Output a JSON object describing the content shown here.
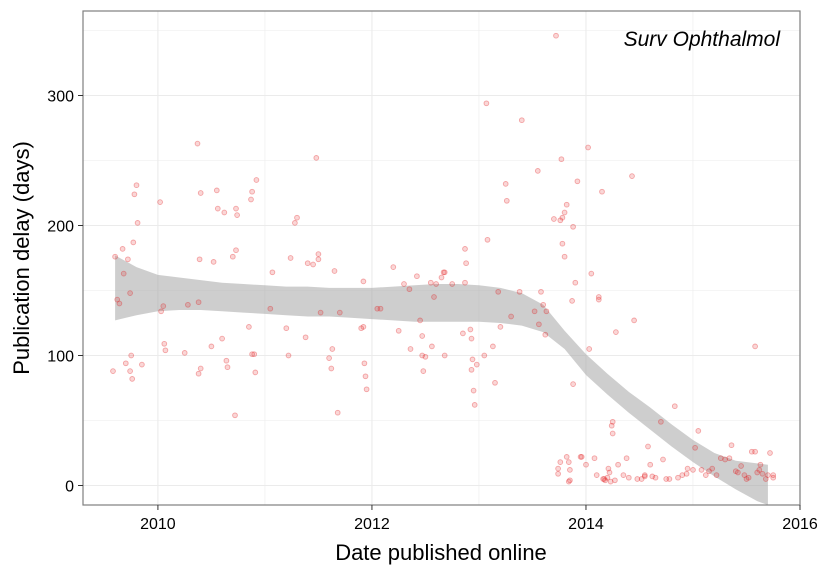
{
  "chart_data": {
    "type": "scatter",
    "annotation": "Surv Ophthalmol",
    "xlabel": "Date published online",
    "ylabel": "Publication delay (days)",
    "xlim": [
      2009.3,
      2016.0
    ],
    "ylim": [
      -15,
      365
    ],
    "x_ticks": [
      2010,
      2012,
      2014,
      2016
    ],
    "y_ticks": [
      0,
      100,
      200,
      300
    ],
    "grid": true,
    "colors": {
      "points": "#e31a1c",
      "band": "#a6a6a6",
      "grid": "#ebebeb",
      "border": "#7f7f7f"
    },
    "smooth_band": {
      "x": [
        2009.6,
        2009.8,
        2010.0,
        2010.2,
        2010.4,
        2010.6,
        2010.8,
        2011.0,
        2011.2,
        2011.4,
        2011.6,
        2011.8,
        2012.0,
        2012.2,
        2012.4,
        2012.6,
        2012.8,
        2013.0,
        2013.2,
        2013.4,
        2013.6,
        2013.8,
        2014.0,
        2014.2,
        2014.4,
        2014.6,
        2014.8,
        2015.0,
        2015.2,
        2015.4,
        2015.6,
        2015.7
      ],
      "lower": [
        127,
        131,
        134,
        135,
        135,
        134,
        133,
        132,
        131,
        130,
        130,
        129,
        128,
        127,
        126,
        126,
        126,
        126,
        125,
        123,
        118,
        105,
        85,
        70,
        56,
        43,
        30,
        18,
        7,
        -3,
        -12,
        -15
      ],
      "upper": [
        177,
        168,
        162,
        160,
        158,
        156,
        155,
        154,
        153,
        153,
        152,
        152,
        152,
        153,
        154,
        155,
        155,
        154,
        152,
        148,
        139,
        119,
        101,
        86,
        72,
        60,
        47,
        35,
        25,
        19,
        17,
        16
      ]
    },
    "series": [
      {
        "points": [
          [
            2009.58,
            88
          ],
          [
            2009.6,
            176
          ],
          [
            2009.62,
            143
          ],
          [
            2009.64,
            140
          ],
          [
            2009.67,
            182
          ],
          [
            2009.68,
            163
          ],
          [
            2009.7,
            94
          ],
          [
            2009.72,
            174
          ],
          [
            2009.74,
            88
          ],
          [
            2009.74,
            148
          ],
          [
            2009.75,
            100
          ],
          [
            2009.76,
            82
          ],
          [
            2009.77,
            187
          ],
          [
            2009.78,
            224
          ],
          [
            2009.8,
            231
          ],
          [
            2009.81,
            202
          ],
          [
            2009.85,
            93
          ],
          [
            2010.02,
            218
          ],
          [
            2010.03,
            134
          ],
          [
            2010.05,
            138
          ],
          [
            2010.06,
            109
          ],
          [
            2010.07,
            104
          ],
          [
            2010.25,
            102
          ],
          [
            2010.28,
            139
          ],
          [
            2010.37,
            263
          ],
          [
            2010.38,
            141
          ],
          [
            2010.38,
            86
          ],
          [
            2010.39,
            174
          ],
          [
            2010.4,
            90
          ],
          [
            2010.4,
            225
          ],
          [
            2010.5,
            107
          ],
          [
            2010.52,
            172
          ],
          [
            2010.55,
            227
          ],
          [
            2010.56,
            213
          ],
          [
            2010.6,
            113
          ],
          [
            2010.62,
            210
          ],
          [
            2010.64,
            96
          ],
          [
            2010.65,
            91
          ],
          [
            2010.7,
            176
          ],
          [
            2010.72,
            54
          ],
          [
            2010.73,
            213
          ],
          [
            2010.73,
            181
          ],
          [
            2010.74,
            208
          ],
          [
            2010.85,
            122
          ],
          [
            2010.87,
            220
          ],
          [
            2010.88,
            226
          ],
          [
            2010.88,
            101
          ],
          [
            2010.9,
            101
          ],
          [
            2010.91,
            87
          ],
          [
            2010.92,
            235
          ],
          [
            2011.05,
            136
          ],
          [
            2011.07,
            164
          ],
          [
            2011.2,
            121
          ],
          [
            2011.22,
            100
          ],
          [
            2011.24,
            175
          ],
          [
            2011.28,
            202
          ],
          [
            2011.3,
            206
          ],
          [
            2011.38,
            114
          ],
          [
            2011.4,
            171
          ],
          [
            2011.45,
            170
          ],
          [
            2011.48,
            252
          ],
          [
            2011.5,
            174
          ],
          [
            2011.5,
            178
          ],
          [
            2011.52,
            133
          ],
          [
            2011.6,
            98
          ],
          [
            2011.62,
            90
          ],
          [
            2011.63,
            105
          ],
          [
            2011.65,
            165
          ],
          [
            2011.68,
            56
          ],
          [
            2011.7,
            133
          ],
          [
            2011.9,
            121
          ],
          [
            2011.92,
            157
          ],
          [
            2011.92,
            122
          ],
          [
            2011.93,
            94
          ],
          [
            2011.94,
            84
          ],
          [
            2011.95,
            74
          ],
          [
            2012.05,
            136
          ],
          [
            2012.08,
            136
          ],
          [
            2012.2,
            168
          ],
          [
            2012.25,
            119
          ],
          [
            2012.3,
            155
          ],
          [
            2012.35,
            151
          ],
          [
            2012.36,
            105
          ],
          [
            2012.42,
            161
          ],
          [
            2012.45,
            127
          ],
          [
            2012.47,
            115
          ],
          [
            2012.47,
            100
          ],
          [
            2012.48,
            88
          ],
          [
            2012.5,
            99
          ],
          [
            2012.55,
            156
          ],
          [
            2012.56,
            107
          ],
          [
            2012.58,
            145
          ],
          [
            2012.6,
            155
          ],
          [
            2012.65,
            160
          ],
          [
            2012.67,
            164
          ],
          [
            2012.68,
            100
          ],
          [
            2012.68,
            164
          ],
          [
            2012.75,
            155
          ],
          [
            2012.85,
            117
          ],
          [
            2012.87,
            156
          ],
          [
            2012.87,
            182
          ],
          [
            2012.88,
            171
          ],
          [
            2012.92,
            120
          ],
          [
            2012.93,
            113
          ],
          [
            2012.93,
            89
          ],
          [
            2012.94,
            97
          ],
          [
            2012.95,
            73
          ],
          [
            2012.96,
            62
          ],
          [
            2012.98,
            93
          ],
          [
            2013.05,
            100
          ],
          [
            2013.07,
            294
          ],
          [
            2013.08,
            189
          ],
          [
            2013.13,
            107
          ],
          [
            2013.15,
            79
          ],
          [
            2013.18,
            149
          ],
          [
            2013.2,
            122
          ],
          [
            2013.25,
            232
          ],
          [
            2013.26,
            219
          ],
          [
            2013.3,
            130
          ],
          [
            2013.38,
            149
          ],
          [
            2013.4,
            281
          ],
          [
            2013.52,
            134
          ],
          [
            2013.55,
            242
          ],
          [
            2013.56,
            124
          ],
          [
            2013.58,
            149
          ],
          [
            2013.6,
            139
          ],
          [
            2013.62,
            116
          ],
          [
            2013.63,
            134
          ],
          [
            2013.7,
            205
          ],
          [
            2013.72,
            346
          ],
          [
            2013.74,
            9
          ],
          [
            2013.74,
            13
          ],
          [
            2013.76,
            204
          ],
          [
            2013.76,
            18
          ],
          [
            2013.77,
            251
          ],
          [
            2013.78,
            206
          ],
          [
            2013.78,
            186
          ],
          [
            2013.8,
            210
          ],
          [
            2013.8,
            176
          ],
          [
            2013.82,
            216
          ],
          [
            2013.82,
            22
          ],
          [
            2013.84,
            18
          ],
          [
            2013.84,
            3
          ],
          [
            2013.85,
            12
          ],
          [
            2013.85,
            4
          ],
          [
            2013.87,
            142
          ],
          [
            2013.88,
            199
          ],
          [
            2013.88,
            78
          ],
          [
            2013.9,
            156
          ],
          [
            2013.92,
            234
          ],
          [
            2013.95,
            22
          ],
          [
            2013.96,
            22
          ],
          [
            2014.0,
            16
          ],
          [
            2014.02,
            260
          ],
          [
            2014.03,
            105
          ],
          [
            2014.05,
            163
          ],
          [
            2014.08,
            21
          ],
          [
            2014.1,
            8
          ],
          [
            2014.12,
            145
          ],
          [
            2014.12,
            143
          ],
          [
            2014.15,
            226
          ],
          [
            2014.16,
            5
          ],
          [
            2014.17,
            5
          ],
          [
            2014.18,
            4
          ],
          [
            2014.2,
            6
          ],
          [
            2014.21,
            13
          ],
          [
            2014.22,
            10
          ],
          [
            2014.23,
            3
          ],
          [
            2014.24,
            46
          ],
          [
            2014.25,
            49
          ],
          [
            2014.25,
            40
          ],
          [
            2014.27,
            4
          ],
          [
            2014.28,
            118
          ],
          [
            2014.3,
            16
          ],
          [
            2014.35,
            8
          ],
          [
            2014.38,
            21
          ],
          [
            2014.4,
            6
          ],
          [
            2014.43,
            238
          ],
          [
            2014.45,
            127
          ],
          [
            2014.48,
            5
          ],
          [
            2014.52,
            5
          ],
          [
            2014.55,
            7
          ],
          [
            2014.55,
            8
          ],
          [
            2014.58,
            30
          ],
          [
            2014.6,
            16
          ],
          [
            2014.62,
            7
          ],
          [
            2014.65,
            6
          ],
          [
            2014.7,
            49
          ],
          [
            2014.72,
            20
          ],
          [
            2014.75,
            5
          ],
          [
            2014.78,
            5
          ],
          [
            2014.83,
            61
          ],
          [
            2014.86,
            6
          ],
          [
            2014.9,
            8
          ],
          [
            2014.94,
            9
          ],
          [
            2014.95,
            13
          ],
          [
            2015.0,
            12
          ],
          [
            2015.02,
            29
          ],
          [
            2015.05,
            42
          ],
          [
            2015.08,
            12
          ],
          [
            2015.12,
            8
          ],
          [
            2015.15,
            11
          ],
          [
            2015.18,
            13
          ],
          [
            2015.22,
            8
          ],
          [
            2015.26,
            21
          ],
          [
            2015.3,
            20
          ],
          [
            2015.34,
            21
          ],
          [
            2015.36,
            31
          ],
          [
            2015.4,
            11
          ],
          [
            2015.42,
            10
          ],
          [
            2015.45,
            15
          ],
          [
            2015.48,
            8
          ],
          [
            2015.5,
            5
          ],
          [
            2015.52,
            6
          ],
          [
            2015.55,
            26
          ],
          [
            2015.58,
            107
          ],
          [
            2015.58,
            26
          ],
          [
            2015.6,
            10
          ],
          [
            2015.62,
            12
          ],
          [
            2015.63,
            16
          ],
          [
            2015.65,
            9
          ],
          [
            2015.68,
            5
          ],
          [
            2015.7,
            8
          ],
          [
            2015.72,
            25
          ],
          [
            2015.75,
            6
          ],
          [
            2015.75,
            8
          ]
        ]
      }
    ]
  }
}
